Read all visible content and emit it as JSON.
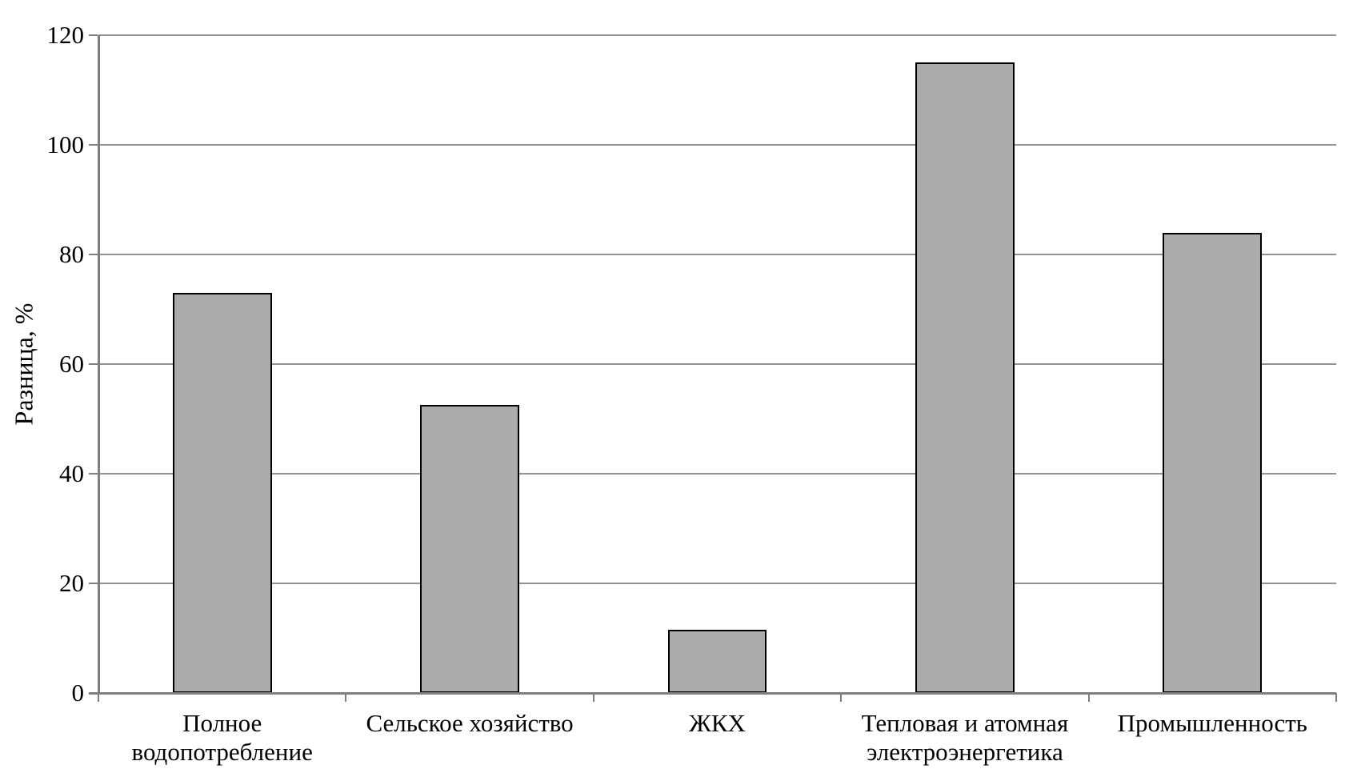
{
  "chart_data": {
    "type": "bar",
    "ylabel": "Разница, %",
    "xlabel": "",
    "categories": [
      "Полное водопотребление",
      "Сельское хозяйство",
      "ЖКХ",
      "Тепловая и атомная электроэнергетика",
      "Промышленность"
    ],
    "values": [
      73,
      52.5,
      11.5,
      115,
      84
    ],
    "ylim": [
      0,
      120
    ],
    "ytick_step": 20,
    "ytick_labels": [
      "0",
      "20",
      "40",
      "60",
      "80",
      "100",
      "120"
    ],
    "grid": "horizontal",
    "legend": "none",
    "bar_width_fraction": 0.4,
    "colors": {
      "bar_fill": "#ABABAB",
      "bar_border": "#000000",
      "gridline": "#929292",
      "axis": "#7F7F7F",
      "text": "#000000"
    }
  }
}
